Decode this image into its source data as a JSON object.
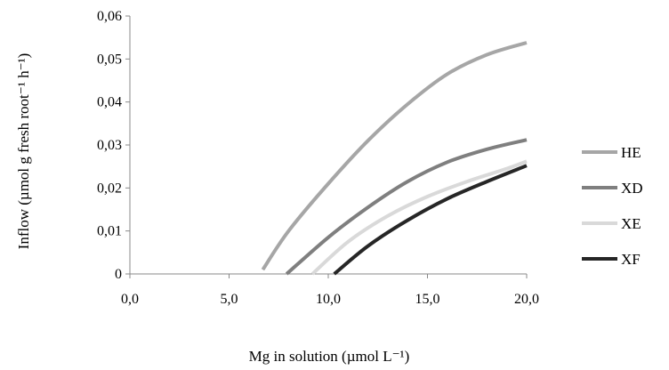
{
  "chart_data": {
    "type": "line",
    "xlabel": "Mg in solution (µmol L⁻¹)",
    "ylabel": "Inflow (µmol g fresh root⁻¹ h⁻¹)",
    "xlim": [
      0,
      20
    ],
    "ylim": [
      0,
      0.06
    ],
    "x_ticks": [
      "0,0",
      "5,0",
      "10,0",
      "15,0",
      "20,0"
    ],
    "y_ticks": [
      "0",
      "0,01",
      "0,02",
      "0,03",
      "0,04",
      "0,05",
      "0,06"
    ],
    "grid": false,
    "legend_position": "right",
    "series": [
      {
        "name": "HE",
        "color": "#a6a6a6",
        "x": [
          6.7,
          8,
          10,
          12,
          14,
          16,
          18,
          20
        ],
        "y": [
          0.001,
          0.01,
          0.021,
          0.031,
          0.0395,
          0.0465,
          0.051,
          0.0538
        ]
      },
      {
        "name": "XD",
        "color": "#7f7f7f",
        "x": [
          7.9,
          10,
          12,
          14,
          16,
          18,
          20
        ],
        "y": [
          0.0,
          0.0085,
          0.0155,
          0.0215,
          0.026,
          0.029,
          0.0312
        ]
      },
      {
        "name": "XE",
        "color": "#d9d9d9",
        "x": [
          9.2,
          11,
          13,
          15,
          17,
          19,
          20
        ],
        "y": [
          0.0,
          0.0075,
          0.0135,
          0.018,
          0.0215,
          0.0245,
          0.0262
        ]
      },
      {
        "name": "XF",
        "color": "#262626",
        "x": [
          10.3,
          12,
          14,
          16,
          18,
          20
        ],
        "y": [
          0.0,
          0.0065,
          0.0125,
          0.0175,
          0.0215,
          0.0252
        ]
      }
    ]
  }
}
